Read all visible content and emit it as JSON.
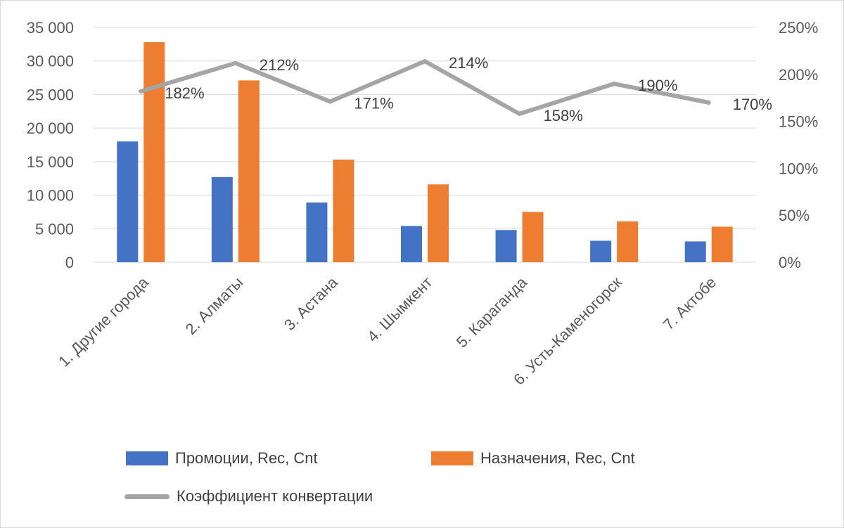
{
  "chart_data": {
    "type": "bar",
    "categories": [
      "1. Другие города",
      "2. Алматы",
      "3. Астана",
      "4. Шымкент",
      "5. Караганда",
      "6. Усть-Каменогорск",
      "7. Актобе"
    ],
    "series": [
      {
        "name": "Промоции, Rec, Cnt",
        "type": "bar",
        "axis": "left",
        "color": "#4472C4",
        "values": [
          18000,
          12700,
          8900,
          5400,
          4800,
          3200,
          3100
        ]
      },
      {
        "name": "Назначения, Rec, Cnt",
        "type": "bar",
        "axis": "left",
        "color": "#ED7D31",
        "values": [
          32800,
          27100,
          15300,
          11600,
          7500,
          6100,
          5300
        ]
      },
      {
        "name": "Коэффициент конвертации",
        "type": "line",
        "axis": "right",
        "color": "#A5A5A5",
        "values": [
          182,
          212,
          171,
          214,
          158,
          190,
          170
        ],
        "labels": [
          "182%",
          "212%",
          "171%",
          "214%",
          "158%",
          "190%",
          "170%"
        ]
      }
    ],
    "y_left": {
      "ylim": [
        0,
        35000
      ],
      "ticks": [
        0,
        5000,
        10000,
        15000,
        20000,
        25000,
        30000,
        35000
      ],
      "tick_labels": [
        "0",
        "5 000",
        "10 000",
        "15 000",
        "20 000",
        "25 000",
        "30 000",
        "35 000"
      ]
    },
    "y_right": {
      "ylim": [
        0,
        250
      ],
      "ticks": [
        0,
        50,
        100,
        150,
        200,
        250
      ],
      "tick_labels": [
        "0%",
        "50%",
        "100%",
        "150%",
        "200%",
        "250%"
      ]
    },
    "grid": true,
    "legend_position": "bottom"
  }
}
